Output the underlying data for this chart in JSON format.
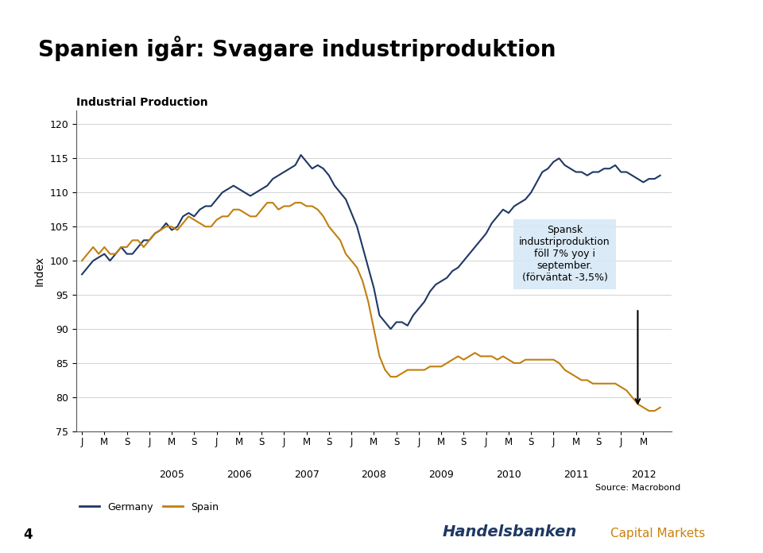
{
  "title": "Spanien igår: Svagare industriproduktion",
  "subtitle": "Industrial Production",
  "ylabel": "Index",
  "ylim": [
    75,
    122
  ],
  "yticks": [
    75,
    80,
    85,
    90,
    95,
    100,
    105,
    110,
    115,
    120
  ],
  "source": "Source: Macrobond",
  "page_num": "4",
  "annotation_text": "Spansk\nindustriproduktion\nföll 7% yoy i\nseptember.\n(förväntat -3,5%)",
  "germany_color": "#1f3864",
  "spain_color": "#c07f10",
  "background_color": "#ffffff",
  "header_color": "#1f3864",
  "annotation_box_color": "#d6e8f5",
  "germany_data": [
    98.0,
    99.0,
    100.0,
    100.5,
    101.0,
    100.0,
    101.0,
    102.0,
    101.0,
    101.0,
    102.0,
    103.0,
    103.0,
    104.0,
    104.5,
    105.5,
    104.5,
    105.0,
    106.5,
    107.0,
    106.5,
    107.5,
    108.0,
    108.0,
    109.0,
    110.0,
    110.5,
    111.0,
    110.5,
    110.0,
    109.5,
    110.0,
    110.5,
    111.0,
    112.0,
    112.5,
    113.0,
    113.5,
    114.0,
    115.5,
    114.5,
    113.5,
    114.0,
    113.5,
    112.5,
    111.0,
    110.0,
    109.0,
    107.0,
    105.0,
    102.0,
    99.0,
    96.0,
    92.0,
    91.0,
    90.0,
    91.0,
    91.0,
    90.5,
    92.0,
    93.0,
    94.0,
    95.5,
    96.5,
    97.0,
    97.5,
    98.5,
    99.0,
    100.0,
    101.0,
    102.0,
    103.0,
    104.0,
    105.5,
    106.5,
    107.5,
    107.0,
    108.0,
    108.5,
    109.0,
    110.0,
    111.5,
    113.0,
    113.5,
    114.5,
    115.0,
    114.0,
    113.5,
    113.0,
    113.0,
    112.5,
    113.0,
    113.0,
    113.5,
    113.5,
    114.0,
    113.0,
    113.0,
    112.5,
    112.0,
    111.5,
    112.0,
    112.0,
    112.5
  ],
  "spain_data": [
    100.0,
    101.0,
    102.0,
    101.0,
    102.0,
    101.0,
    101.0,
    102.0,
    102.0,
    103.0,
    103.0,
    102.0,
    103.0,
    104.0,
    104.5,
    105.0,
    105.0,
    104.5,
    105.5,
    106.5,
    106.0,
    105.5,
    105.0,
    105.0,
    106.0,
    106.5,
    106.5,
    107.5,
    107.5,
    107.0,
    106.5,
    106.5,
    107.5,
    108.5,
    108.5,
    107.5,
    108.0,
    108.0,
    108.5,
    108.5,
    108.0,
    108.0,
    107.5,
    106.5,
    105.0,
    104.0,
    103.0,
    101.0,
    100.0,
    99.0,
    97.0,
    94.0,
    90.0,
    86.0,
    84.0,
    83.0,
    83.0,
    83.5,
    84.0,
    84.0,
    84.0,
    84.0,
    84.5,
    84.5,
    84.5,
    85.0,
    85.5,
    86.0,
    85.5,
    86.0,
    86.5,
    86.0,
    86.0,
    86.0,
    85.5,
    86.0,
    85.5,
    85.0,
    85.0,
    85.5,
    85.5,
    85.5,
    85.5,
    85.5,
    85.5,
    85.0,
    84.0,
    83.5,
    83.0,
    82.5,
    82.5,
    82.0,
    82.0,
    82.0,
    82.0,
    82.0,
    81.5,
    81.0,
    80.0,
    79.0,
    78.5,
    78.0,
    78.0,
    78.5
  ],
  "handelsbanken_blue": "#1f3864",
  "handelsbanken_orange": "#c07f10",
  "handelsbanken_text_orange": "#c9820a"
}
